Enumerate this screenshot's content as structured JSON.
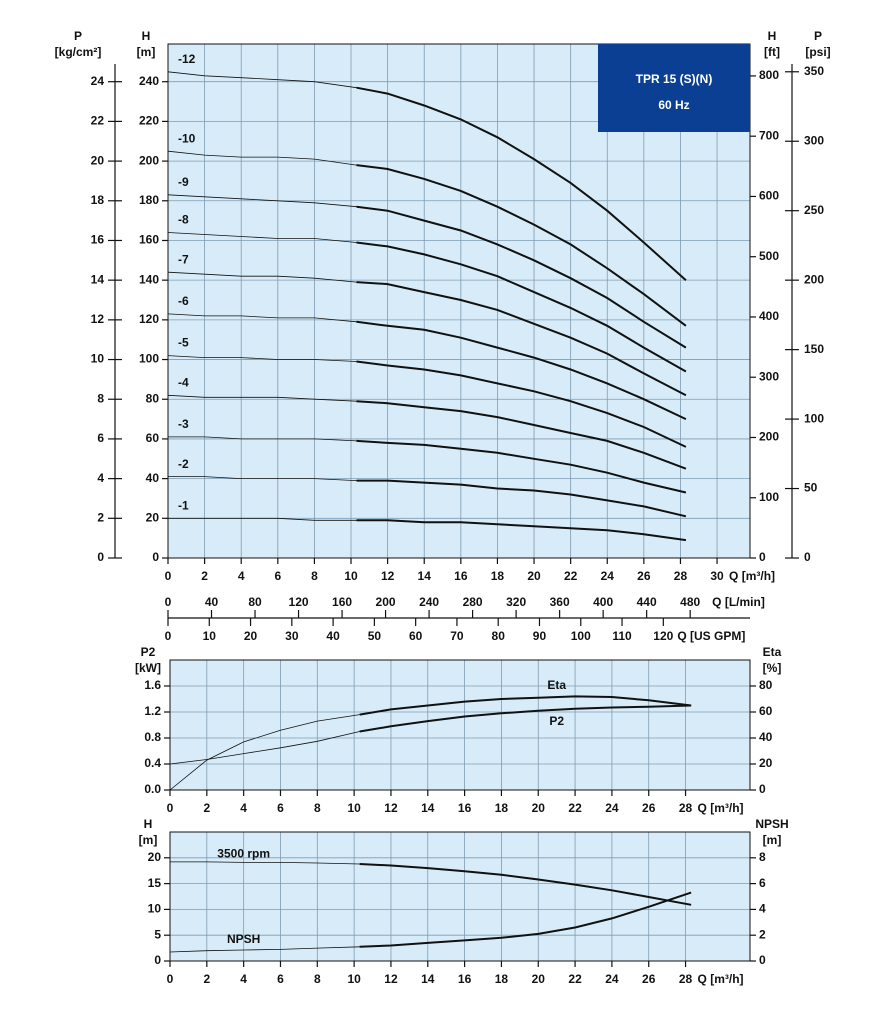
{
  "chart_data": [
    {
      "type": "line",
      "title": "TPR 15 (S)(N)",
      "subtitle": "60 Hz",
      "grid": true,
      "x": [
        0,
        2,
        4,
        6,
        8,
        10.3,
        12,
        14,
        16,
        18,
        20,
        22,
        24,
        26,
        28.3
      ],
      "operating_range": [
        10.3,
        28.3
      ],
      "xlim": [
        0,
        31.8
      ],
      "xticks": [
        0,
        2,
        4,
        6,
        8,
        10,
        12,
        14,
        16,
        18,
        20,
        22,
        24,
        26,
        28,
        30
      ],
      "xlabel": "Q [m³/h]",
      "extra_x_axes": [
        {
          "label": "Q [L/min]",
          "lim": [
            0,
            535
          ],
          "ticks": [
            0,
            40,
            80,
            120,
            160,
            200,
            240,
            280,
            320,
            360,
            400,
            440,
            480
          ]
        },
        {
          "label": "Q [US GPM]",
          "lim": [
            0,
            141
          ],
          "ticks": [
            0,
            10,
            20,
            30,
            40,
            50,
            60,
            70,
            80,
            90,
            100,
            110,
            120
          ]
        }
      ],
      "y_axes": [
        {
          "name": "P",
          "unit": "[kg/cm²]",
          "side": "left-outer",
          "lim": [
            0,
            25.9
          ],
          "ticks": [
            0,
            2,
            4,
            6,
            8,
            10,
            12,
            14,
            16,
            18,
            20,
            22,
            24
          ]
        },
        {
          "name": "H",
          "unit": "[m]",
          "side": "left",
          "lim": [
            0,
            259
          ],
          "ticks": [
            0,
            20,
            40,
            60,
            80,
            100,
            120,
            140,
            160,
            180,
            200,
            220,
            240
          ]
        },
        {
          "name": "H",
          "unit": "[ft]",
          "side": "right",
          "lim": [
            0,
            853
          ],
          "ticks": [
            0,
            100,
            200,
            300,
            400,
            500,
            600,
            700,
            800
          ]
        },
        {
          "name": "P",
          "unit": "[psi]",
          "side": "right-outer",
          "lim": [
            0,
            370
          ],
          "ticks": [
            0,
            50,
            100,
            150,
            200,
            250,
            300,
            350
          ]
        }
      ],
      "series": [
        {
          "name": "-12",
          "axis": 1,
          "color": "#111111",
          "values": [
            245,
            243,
            242,
            241,
            240,
            237,
            234,
            228,
            221,
            212,
            201,
            189,
            175,
            159,
            140
          ]
        },
        {
          "name": "-10",
          "axis": 1,
          "color": "#111111",
          "values": [
            205,
            203,
            202,
            202,
            201,
            198,
            196,
            191,
            185,
            177,
            168,
            158,
            146,
            133,
            117
          ]
        },
        {
          "name": "-9",
          "axis": 1,
          "color": "#111111",
          "values": [
            183,
            182,
            181,
            180,
            179,
            177,
            175,
            170,
            165,
            158,
            150,
            141,
            131,
            119,
            106
          ]
        },
        {
          "name": "-8",
          "axis": 1,
          "color": "#111111",
          "values": [
            164,
            163,
            162,
            161,
            161,
            159,
            157,
            153,
            148,
            142,
            134,
            126,
            117,
            106,
            94
          ]
        },
        {
          "name": "-7",
          "axis": 1,
          "color": "#111111",
          "values": [
            144,
            143,
            142,
            142,
            141,
            139,
            138,
            134,
            130,
            125,
            118,
            111,
            103,
            93,
            82
          ]
        },
        {
          "name": "-6",
          "axis": 1,
          "color": "#111111",
          "values": [
            123,
            122,
            122,
            121,
            121,
            119,
            117,
            115,
            111,
            106,
            101,
            95,
            88,
            80,
            70
          ]
        },
        {
          "name": "-5",
          "axis": 1,
          "color": "#111111",
          "values": [
            102,
            101,
            101,
            100,
            100,
            99,
            97,
            95,
            92,
            88,
            84,
            79,
            73,
            66,
            56
          ]
        },
        {
          "name": "-4",
          "axis": 1,
          "color": "#111111",
          "values": [
            82,
            81,
            81,
            81,
            80,
            79,
            78,
            76,
            74,
            71,
            67,
            63,
            59,
            53,
            45
          ]
        },
        {
          "name": "-3",
          "axis": 1,
          "color": "#111111",
          "values": [
            61,
            61,
            60,
            60,
            60,
            59,
            58,
            57,
            55,
            53,
            50,
            47,
            43,
            38,
            33
          ]
        },
        {
          "name": "-2",
          "axis": 1,
          "color": "#111111",
          "values": [
            41,
            41,
            40,
            40,
            40,
            39,
            39,
            38,
            37,
            35,
            34,
            32,
            29,
            26,
            21
          ]
        },
        {
          "name": "-1",
          "axis": 1,
          "color": "#111111",
          "values": [
            20,
            20,
            20,
            20,
            19,
            19,
            19,
            18,
            18,
            17,
            16,
            15,
            14,
            12,
            9
          ]
        }
      ]
    },
    {
      "type": "line",
      "grid": true,
      "x": [
        0,
        2,
        4,
        6,
        8,
        10.3,
        12,
        14,
        16,
        18,
        20,
        22,
        24,
        26,
        28.3
      ],
      "operating_range": [
        10.3,
        28.3
      ],
      "xlim": [
        0,
        31.5
      ],
      "xticks": [
        0,
        2,
        4,
        6,
        8,
        10,
        12,
        14,
        16,
        18,
        20,
        22,
        24,
        26,
        28
      ],
      "xlabel": "Q [m³/h]",
      "y_axes": [
        {
          "name": "P2",
          "unit": "[kW]",
          "side": "left",
          "lim": [
            0,
            2.0
          ],
          "ticks": [
            {
              "value": 0,
              "label": "0.0"
            },
            0.4,
            0.8,
            1.2,
            1.6
          ]
        },
        {
          "name": "Eta",
          "unit": "[%]",
          "side": "right",
          "lim": [
            0,
            100
          ],
          "ticks": [
            0,
            20,
            40,
            60,
            80
          ]
        }
      ],
      "series": [
        {
          "name": "Eta",
          "axis": 1,
          "color": "#111111",
          "values": [
            0,
            23,
            37,
            46,
            53,
            58,
            62,
            65,
            68,
            70,
            71,
            72,
            71.5,
            69,
            65
          ]
        },
        {
          "name": "P2",
          "axis": 0,
          "color": "#111111",
          "values": [
            0.4,
            0.47,
            0.56,
            0.65,
            0.75,
            0.9,
            0.98,
            1.06,
            1.13,
            1.18,
            1.22,
            1.25,
            1.27,
            1.28,
            1.3
          ]
        }
      ]
    },
    {
      "type": "line",
      "grid": true,
      "x": [
        0,
        2,
        4,
        6,
        8,
        10.3,
        12,
        14,
        16,
        18,
        20,
        22,
        24,
        26,
        28.3
      ],
      "operating_range": [
        10.3,
        28.3
      ],
      "xlim": [
        0,
        31.5
      ],
      "xticks": [
        0,
        2,
        4,
        6,
        8,
        10,
        12,
        14,
        16,
        18,
        20,
        22,
        24,
        26,
        28
      ],
      "xlabel": "Q [m³/h]",
      "y_axes": [
        {
          "name": "H",
          "unit": "[m]",
          "side": "left",
          "lim": [
            0,
            25
          ],
          "ticks": [
            0,
            5,
            10,
            15,
            20
          ]
        },
        {
          "name": "NPSH",
          "unit": "[m]",
          "side": "right",
          "lim": [
            0,
            10
          ],
          "ticks": [
            0,
            2,
            4,
            6,
            8
          ]
        }
      ],
      "series": [
        {
          "name": "3500 rpm",
          "axis": 0,
          "color": "#111111",
          "values": [
            19.2,
            19.2,
            19.1,
            19.1,
            19.0,
            18.8,
            18.5,
            18.0,
            17.4,
            16.7,
            15.8,
            14.8,
            13.7,
            12.4,
            10.9
          ]
        },
        {
          "name": "NPSH",
          "axis": 1,
          "color": "#111111",
          "values": [
            0.7,
            0.8,
            0.85,
            0.9,
            1.0,
            1.1,
            1.2,
            1.4,
            1.6,
            1.8,
            2.1,
            2.6,
            3.3,
            4.2,
            5.3
          ]
        }
      ]
    }
  ]
}
